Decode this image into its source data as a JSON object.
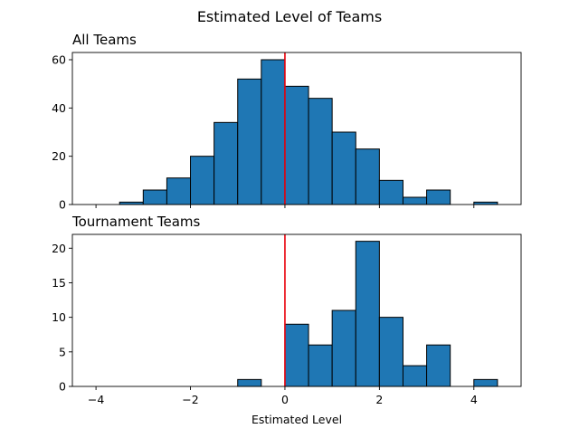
{
  "chart_data": {
    "type": "bar",
    "suptitle": "Estimated Level of Teams",
    "xlabel": "Estimated Level",
    "xlim": [
      -4.5,
      5.0
    ],
    "xticks": [
      -4,
      -2,
      0,
      2,
      4
    ],
    "xtick_labels": [
      "−4",
      "−2",
      "0",
      "2",
      "4"
    ],
    "vline_x": 0,
    "vline_color": "#e8000b",
    "bar_color": "#1f77b4",
    "bin_edges": [
      -4.0,
      -3.5,
      -3.0,
      -2.5,
      -2.0,
      -1.5,
      -1.0,
      -0.5,
      0.0,
      0.5,
      1.0,
      1.5,
      2.0,
      2.5,
      3.0,
      3.5,
      4.0,
      4.5
    ],
    "panels": [
      {
        "title": "All Teams",
        "ylim": [
          0,
          63
        ],
        "yticks": [
          0,
          20,
          40,
          60
        ],
        "values": [
          0,
          1,
          6,
          11,
          20,
          34,
          52,
          60,
          49,
          44,
          30,
          23,
          10,
          3,
          6,
          0,
          1
        ]
      },
      {
        "title": "Tournament Teams",
        "ylim": [
          0,
          22
        ],
        "yticks": [
          0,
          5,
          10,
          15,
          20
        ],
        "values": [
          0,
          0,
          0,
          0,
          0,
          0,
          1,
          0,
          9,
          6,
          11,
          21,
          10,
          3,
          6,
          0,
          1
        ]
      }
    ]
  }
}
